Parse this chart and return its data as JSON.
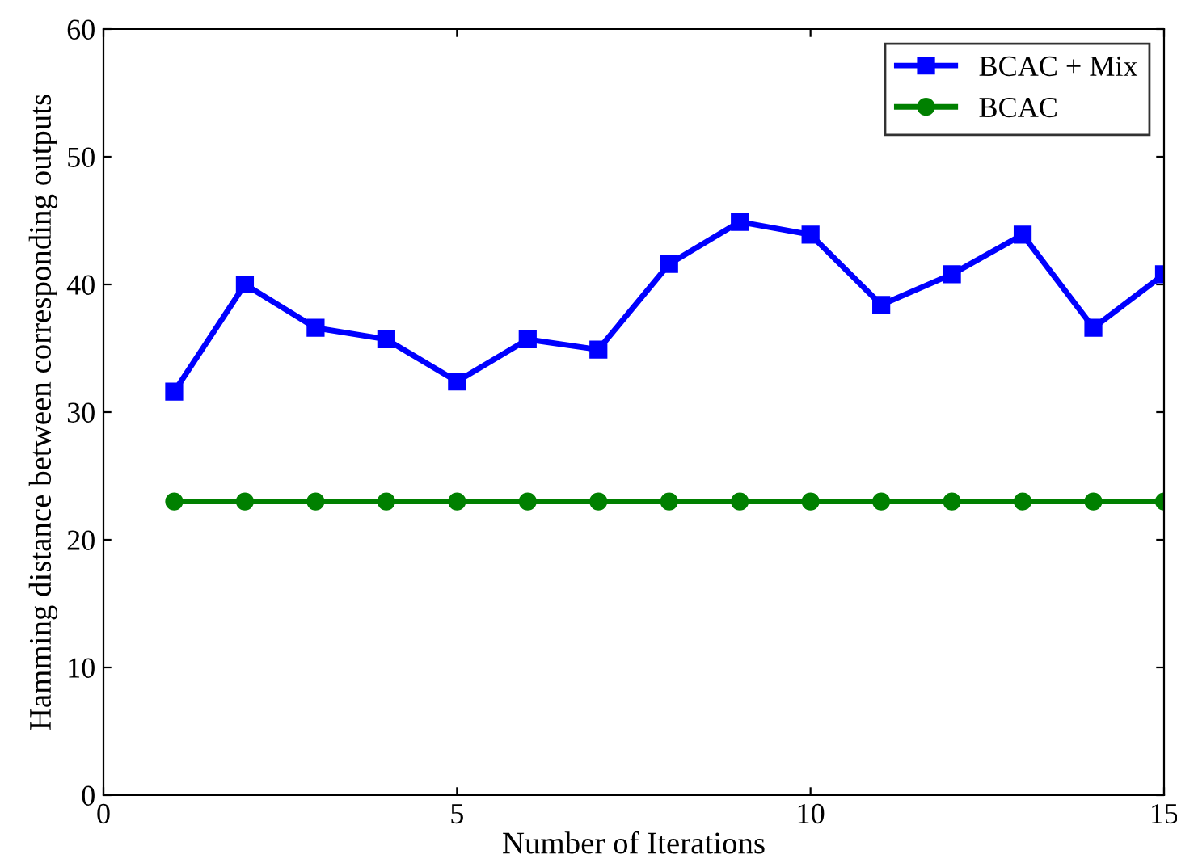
{
  "chart_data": {
    "type": "line",
    "xlabel": "Number of Iterations",
    "ylabel": "Hamming distance between corresponding outputs",
    "x": [
      1,
      2,
      3,
      4,
      5,
      6,
      7,
      8,
      9,
      10,
      11,
      12,
      13,
      14,
      15
    ],
    "series": [
      {
        "name": "BCAC + Mix",
        "color": "#0000ff",
        "marker": "square",
        "values": [
          31.6,
          40.0,
          36.6,
          35.7,
          32.4,
          35.7,
          34.9,
          41.6,
          44.9,
          43.9,
          38.4,
          40.8,
          43.9,
          36.6,
          40.8
        ]
      },
      {
        "name": "BCAC",
        "color": "#008000",
        "marker": "circle",
        "values": [
          23,
          23,
          23,
          23,
          23,
          23,
          23,
          23,
          23,
          23,
          23,
          23,
          23,
          23,
          23
        ]
      }
    ],
    "xlim": [
      0,
      15
    ],
    "xticks": [
      0,
      5,
      10,
      15
    ],
    "ylim": [
      0,
      60
    ],
    "yticks": [
      0,
      10,
      20,
      30,
      40,
      50,
      60
    ],
    "grid": false,
    "legend": "top right",
    "line_style": "solid"
  }
}
